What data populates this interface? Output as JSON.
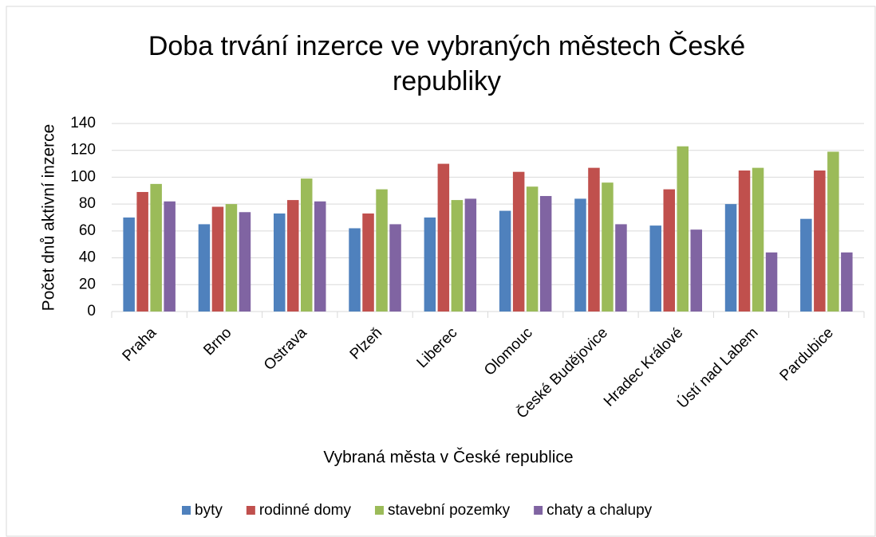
{
  "chart_data": {
    "type": "bar",
    "title": "Doba trvání inzerce ve vybraných městech České republiky",
    "x_label": "Vybraná města v České republice",
    "y_label": "Počet dnů aktivní inzerce",
    "categories": [
      "Praha",
      "Brno",
      "Ostrava",
      "Plzeň",
      "Liberec",
      "Olomouc",
      "České Budějovice",
      "Hradec Králové",
      "Ústí nad Labem",
      "Pardubice"
    ],
    "series": [
      {
        "name": "byty",
        "color": "#4f81bd",
        "values": [
          70,
          65,
          73,
          62,
          70,
          75,
          84,
          64,
          80,
          69
        ]
      },
      {
        "name": "rodinné domy",
        "color": "#c0504d",
        "values": [
          89,
          78,
          83,
          73,
          110,
          104,
          107,
          91,
          105,
          105
        ]
      },
      {
        "name": "stavební pozemky",
        "color": "#9bbb59",
        "values": [
          95,
          80,
          99,
          91,
          83,
          93,
          96,
          123,
          107,
          119
        ]
      },
      {
        "name": "chaty a chalupy",
        "color": "#8064a2",
        "values": [
          82,
          74,
          82,
          65,
          84,
          86,
          65,
          61,
          44,
          44
        ]
      }
    ],
    "ylim": [
      0,
      140
    ],
    "yticks": [
      0,
      20,
      40,
      60,
      80,
      100,
      120,
      140
    ],
    "grid": true,
    "legend": "bottom"
  }
}
